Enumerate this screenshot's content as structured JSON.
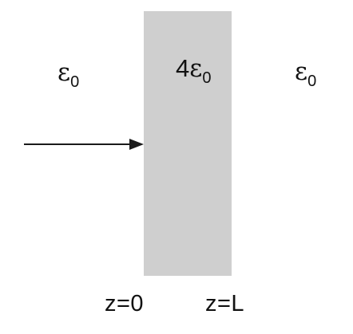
{
  "regions": {
    "left": {
      "permittivity_symbol": "ε",
      "permittivity_subscript": "0",
      "coefficient": ""
    },
    "center": {
      "coefficient": "4",
      "permittivity_symbol": "ε",
      "permittivity_subscript": "0"
    },
    "right": {
      "permittivity_symbol": "ε",
      "permittivity_subscript": "0",
      "coefficient": ""
    }
  },
  "boundaries": {
    "left": "z=0",
    "right": "z=L"
  },
  "colors": {
    "slab": "#cfcfcf",
    "arrow": "#1a1a1a",
    "text": "#111111"
  }
}
